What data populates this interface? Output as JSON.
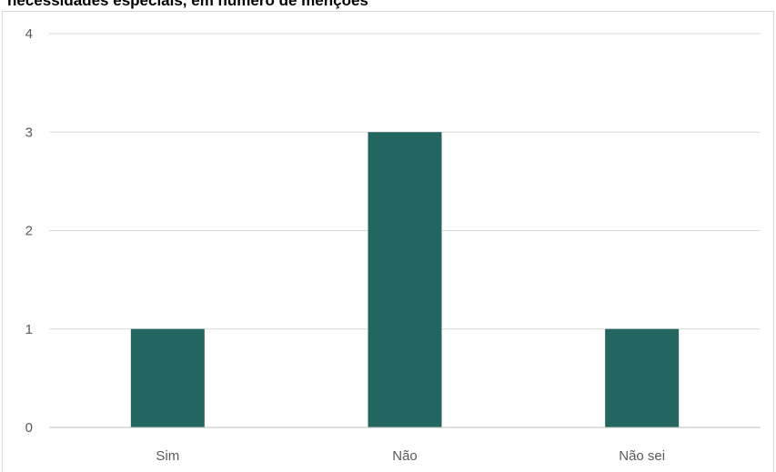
{
  "chart_data": {
    "type": "bar",
    "title": "necessidades especiais, em número de menções",
    "xlabel": "",
    "ylabel": "",
    "categories": [
      "Sim",
      "Não",
      "Não sei"
    ],
    "values": [
      1,
      3,
      1
    ],
    "ylim": [
      0,
      4
    ],
    "yticks": [
      "0",
      "1",
      "2",
      "3",
      "4"
    ],
    "grid": true,
    "legend": "none",
    "colors": {
      "bar": "#22665f",
      "grid": "#d9d9d9",
      "axis": "#bfbfbf",
      "text": "#595959"
    }
  }
}
